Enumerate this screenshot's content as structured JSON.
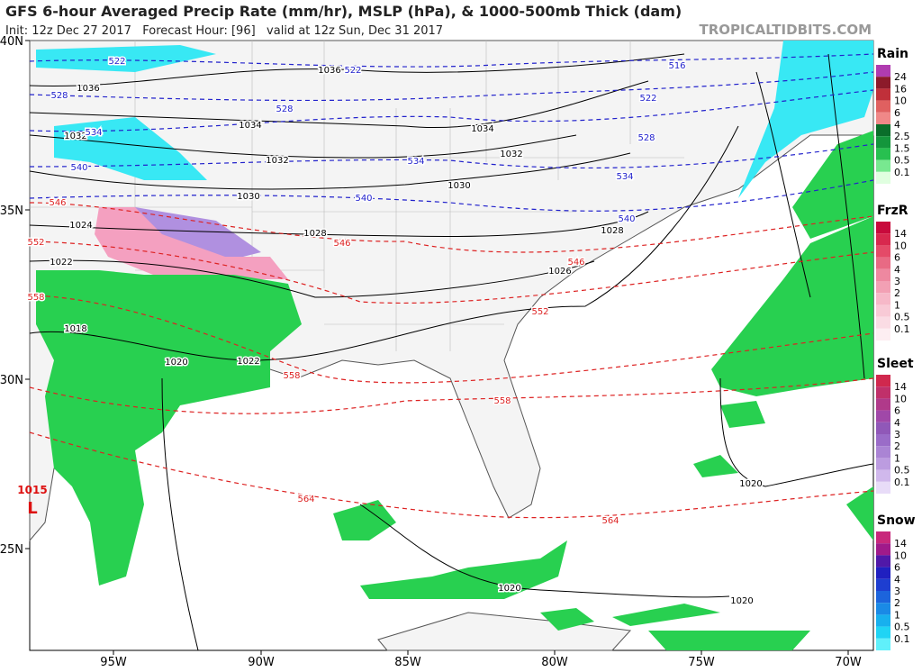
{
  "header": {
    "title": "GFS 6-hour Averaged Precip Rate (mm/hr), MSLP (hPa), & 1000-500mb Thick (dam)",
    "subtitle": "Init: 12z Dec 27 2017   Forecast Hour: [96]   valid at 12z Sun, Dec 31 2017",
    "brand": "TROPICALTIDBITS.COM"
  },
  "axes": {
    "lat_labels": [
      "40N",
      "35N",
      "30N",
      "25N"
    ],
    "lon_labels": [
      "95W",
      "90W",
      "85W",
      "80W",
      "75W",
      "70W"
    ]
  },
  "legends": [
    {
      "title": "Rain",
      "labels": [
        "24",
        "16",
        "10",
        "6",
        "4",
        "2.5",
        "1.5",
        "0.5",
        "0.1"
      ],
      "colors": [
        "#b03cb0",
        "#8c1a2a",
        "#c0303a",
        "#e06060",
        "#f08888",
        "#0a6e2a",
        "#14963c",
        "#28c050",
        "#78e890",
        "#e0ffe0"
      ]
    },
    {
      "title": "FrzR",
      "labels": [
        "14",
        "10",
        "6",
        "4",
        "3",
        "2",
        "1",
        "0.5",
        "0.1"
      ],
      "colors": [
        "#c80a3c",
        "#d8284e",
        "#e44a68",
        "#e86a84",
        "#ee88a0",
        "#f2a0b4",
        "#f6b8c8",
        "#f8cad6",
        "#fadce4",
        "#fdeef2"
      ]
    },
    {
      "title": "Sleet",
      "labels": [
        "14",
        "10",
        "6",
        "4",
        "3",
        "2",
        "1",
        "0.5",
        "0.1"
      ],
      "colors": [
        "#d0284e",
        "#c0306a",
        "#b03a8a",
        "#a048a8",
        "#9058b8",
        "#9a6cc8",
        "#aa84d4",
        "#bc9ce0",
        "#d0b8ec",
        "#e8dcf8"
      ]
    },
    {
      "title": "Snow",
      "labels": [
        "14",
        "10",
        "6",
        "4",
        "3",
        "2",
        "1",
        "0.5",
        "0.1"
      ],
      "colors": [
        "#c8287c",
        "#a01a8a",
        "#5018a8",
        "#2020c0",
        "#1e3ed0",
        "#1c64dc",
        "#1a8ae6",
        "#18b0ee",
        "#20d4f4",
        "#60f0fa"
      ]
    }
  ],
  "contour_labels": {
    "isobars": [
      "1036",
      "1036",
      "1034",
      "1034",
      "1032",
      "1032",
      "1032",
      "1030",
      "1030",
      "1028",
      "1028",
      "1026",
      "1024",
      "1022",
      "1022",
      "1020",
      "1018",
      "1020",
      "1020",
      "1020"
    ],
    "thickness_blue": [
      "522",
      "522",
      "516",
      "522",
      "528",
      "528",
      "528",
      "534",
      "534",
      "534",
      "540",
      "540",
      "540"
    ],
    "thickness_red": [
      "546",
      "546",
      "546",
      "552",
      "552",
      "558",
      "558",
      "558",
      "564",
      "564"
    ]
  },
  "low": {
    "pressure": "1015",
    "symbol": "L"
  }
}
